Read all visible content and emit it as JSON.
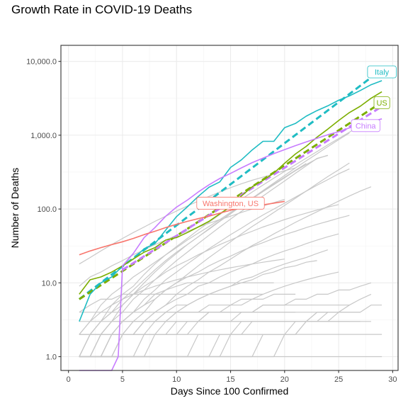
{
  "chart_data": {
    "type": "line",
    "title": "Growth Rate in COVID-19 Deaths",
    "xlabel": "Days Since 100 Confirmed",
    "ylabel": "Number of Deaths",
    "y_scale": "log10",
    "xlim": [
      -0.7,
      30.5
    ],
    "ylim": [
      0.65,
      16500
    ],
    "grid": true,
    "x_ticks": [
      0,
      5,
      10,
      15,
      20,
      25,
      30
    ],
    "x_tick_labels": [
      "0",
      "5",
      "10",
      "15",
      "20",
      "25",
      "30"
    ],
    "y_ticks": [
      1,
      10,
      100,
      1000,
      10000
    ],
    "y_tick_labels": [
      "1.0",
      "10.0",
      "100.0",
      "1,000.0",
      "10,000.0"
    ],
    "colors": {
      "Italy": "#1fbcc3",
      "US": "#7cae00",
      "China": "#c77cff",
      "Washington, US": "#f8766d",
      "background_lines": "#c8c8c8"
    },
    "series": [
      {
        "name": "Italy",
        "x": [
          1,
          2,
          3,
          4,
          5,
          6,
          7,
          8,
          9,
          10,
          11,
          12,
          13,
          14,
          15,
          16,
          17,
          18,
          19,
          20,
          21,
          22,
          23,
          24,
          25,
          26,
          27,
          28,
          29
        ],
        "y": [
          3,
          7,
          10,
          12,
          17,
          21,
          29,
          34,
          52,
          79,
          107,
          148,
          197,
          233,
          366,
          463,
          631,
          827,
          827,
          1266,
          1441,
          1809,
          2158,
          2503,
          2978,
          3405,
          4032,
          4825,
          5476
        ]
      },
      {
        "name": "US",
        "x": [
          1,
          2,
          3,
          4,
          5,
          6,
          7,
          8,
          9,
          10,
          11,
          12,
          13,
          14,
          15,
          16,
          17,
          18,
          19,
          20,
          21,
          22,
          23,
          24,
          25,
          26,
          27,
          28,
          29
        ],
        "y": [
          7,
          11,
          12,
          14,
          17,
          21,
          26,
          30,
          38,
          41,
          48,
          57,
          68,
          86,
          108,
          150,
          200,
          244,
          307,
          417,
          557,
          706,
          942,
          1209,
          1581,
          2026,
          2467,
          3170,
          3873
        ]
      },
      {
        "name": "China",
        "x": [
          1,
          2,
          3,
          4,
          4.6,
          5,
          6,
          7,
          8,
          9,
          10,
          11,
          12,
          13,
          14,
          15,
          16,
          17,
          18,
          19,
          20,
          21,
          22,
          23,
          24,
          25,
          26,
          27,
          28,
          29
        ],
        "y": [
          0.65,
          0.65,
          0.65,
          0.65,
          1,
          17,
          25,
          41,
          56,
          80,
          106,
          132,
          170,
          213,
          259,
          304,
          361,
          425,
          490,
          563,
          637,
          722,
          811,
          908,
          1016,
          1113,
          1259,
          1380,
          1523,
          1665
        ]
      },
      {
        "name": "Washington, US",
        "x": [
          1,
          2,
          3,
          4,
          5,
          6,
          7,
          8,
          9,
          10,
          11,
          12,
          13,
          14,
          15,
          16,
          17,
          18,
          19,
          20
        ],
        "y": [
          24,
          27,
          30,
          33,
          36,
          40,
          45,
          50,
          56,
          62,
          68,
          74,
          80,
          88,
          96,
          104,
          110,
          114,
          120,
          127
        ]
      },
      {
        "name": "Italy trend",
        "dashed": true,
        "color_of": "Italy",
        "x": [
          1,
          29
        ],
        "y": [
          6,
          7800
        ]
      },
      {
        "name": "US trend",
        "dashed": true,
        "color_of": "US",
        "x": [
          1,
          29
        ],
        "y": [
          6,
          2800
        ]
      },
      {
        "name": "China trend",
        "dashed": true,
        "color_of": "China",
        "x": [
          5,
          29
        ],
        "y": [
          15,
          2450
        ]
      }
    ],
    "labels": [
      {
        "text": "Italy",
        "series": "Italy",
        "x": 29,
        "y": 7200
      },
      {
        "text": "US",
        "series": "US",
        "x": 29,
        "y": 2750
      },
      {
        "text": "China",
        "series": "China",
        "x": 27.5,
        "y": 1350
      },
      {
        "text": "Washington, US",
        "series": "Washington, US",
        "x": 15,
        "y": 120
      }
    ],
    "background_series": [
      {
        "y": [
          1,
          1,
          1,
          1,
          1,
          1,
          1,
          1,
          1,
          1,
          1,
          1,
          1,
          1,
          1,
          1,
          1,
          1,
          1,
          1,
          1,
          1,
          1,
          1,
          1,
          1,
          1,
          1,
          1
        ]
      },
      {
        "y": [
          2,
          2,
          2,
          2,
          2,
          2,
          2,
          2,
          2,
          2,
          2,
          2,
          2,
          2,
          2,
          2,
          2,
          2,
          2,
          2,
          2,
          2,
          2,
          2,
          2,
          2,
          2,
          2,
          2
        ]
      },
      {
        "y": [
          4,
          4,
          4,
          4,
          4,
          4,
          4,
          4,
          4,
          4,
          4,
          4,
          4,
          4,
          4,
          4,
          4,
          4,
          4,
          4,
          4,
          4,
          4,
          4,
          4,
          4,
          4
        ]
      },
      {
        "y": [
          1,
          1,
          1,
          1,
          1,
          1,
          1,
          1,
          1,
          1,
          1,
          1,
          1,
          1,
          2,
          3,
          3,
          3,
          3,
          3,
          3,
          3,
          3,
          3,
          3,
          3,
          3,
          3
        ]
      },
      {
        "y": [
          1,
          2,
          3,
          5,
          7,
          9,
          13,
          18,
          24,
          31,
          40,
          52,
          66,
          84,
          108,
          136,
          170,
          211,
          262,
          323,
          398,
          490,
          600,
          740,
          900,
          1100,
          1340,
          1600
        ]
      },
      {
        "y": [
          1,
          2,
          3,
          4,
          6,
          8,
          11,
          15,
          20,
          26,
          33,
          42,
          53,
          68,
          86,
          110,
          140,
          178,
          225,
          285,
          360,
          450,
          560,
          700,
          870,
          1070
        ]
      },
      {
        "y": [
          2,
          3,
          5,
          7,
          9,
          12,
          15,
          19,
          24,
          30,
          38,
          47,
          58,
          72,
          90,
          112,
          140,
          175,
          218,
          270,
          335,
          415
        ]
      },
      {
        "y": [
          1,
          1,
          2,
          3,
          4,
          6,
          8,
          11,
          15,
          20,
          26,
          34,
          44,
          57,
          73,
          93,
          118,
          150,
          190,
          240,
          305,
          385,
          485,
          530
        ]
      },
      {
        "y": [
          1,
          2,
          2,
          3,
          5,
          7,
          10,
          14,
          19,
          25,
          33,
          42,
          54,
          69,
          87,
          110,
          138,
          172,
          214,
          265,
          330,
          400,
          480,
          535
        ]
      },
      {
        "y": [
          1,
          1,
          1,
          2,
          2,
          3,
          4,
          6,
          8,
          10,
          13,
          17,
          22,
          28,
          36,
          46,
          58,
          72,
          90,
          112,
          140,
          175,
          220,
          275,
          340,
          420
        ]
      },
      {
        "y": [
          1,
          1,
          2,
          3,
          3,
          4,
          6,
          8,
          11,
          14,
          18,
          23,
          29,
          36,
          45,
          55,
          68,
          83,
          100,
          120,
          145,
          175,
          210,
          250,
          300,
          350
        ]
      },
      {
        "y": [
          1,
          1,
          1,
          1,
          2,
          2,
          3,
          4,
          5,
          7,
          9,
          11,
          14,
          17,
          21,
          26,
          32,
          38,
          46,
          55,
          66,
          78,
          92,
          108,
          128,
          150,
          175,
          200
        ]
      },
      {
        "y": [
          2,
          2,
          3,
          4,
          5,
          7,
          9,
          11,
          14,
          17,
          20,
          24,
          28,
          33,
          38,
          44,
          50,
          57,
          64,
          72,
          80,
          88,
          97,
          106,
          115
        ]
      },
      {
        "y": [
          1,
          1,
          2,
          2,
          3,
          4,
          5,
          6,
          8,
          10,
          12,
          14,
          17,
          20,
          23,
          27,
          31,
          35,
          40,
          45,
          50,
          56,
          62,
          68,
          75,
          82
        ]
      },
      {
        "y": [
          1,
          1,
          1,
          2,
          2,
          3,
          3,
          4,
          5,
          6,
          7,
          9,
          10,
          12,
          14,
          16,
          18,
          21,
          24,
          27,
          30,
          34,
          38,
          42,
          46
        ]
      },
      {
        "y": [
          1,
          1,
          1,
          1,
          2,
          2,
          2,
          3,
          3,
          4,
          5,
          6,
          7,
          8,
          9,
          11,
          12,
          14,
          16,
          18,
          20,
          22,
          25,
          28
        ]
      },
      {
        "y": [
          1,
          1,
          1,
          1,
          1,
          1,
          2,
          2,
          2,
          3,
          3,
          3,
          4,
          4,
          5,
          5,
          6,
          7,
          8,
          9,
          10,
          11,
          12,
          13,
          14
        ]
      },
      {
        "y": [
          1,
          1,
          1,
          1,
          1,
          1,
          1,
          2,
          2,
          2,
          2,
          3,
          3,
          3,
          3,
          4,
          4,
          5,
          5,
          5,
          6,
          6,
          7,
          7,
          8,
          8,
          9,
          10
        ]
      },
      {
        "y": [
          1,
          1,
          1,
          1,
          1,
          1,
          1,
          1,
          1,
          1,
          1,
          2,
          2,
          2,
          2,
          2,
          2,
          2,
          2,
          2,
          3,
          3,
          3,
          3,
          3,
          3,
          3
        ]
      },
      {
        "y": [
          1,
          1,
          1,
          1,
          2,
          2,
          2,
          2,
          3,
          3,
          3,
          3,
          4,
          4,
          4,
          4,
          4,
          5,
          5,
          5,
          5,
          5,
          5,
          5,
          5,
          5
        ]
      },
      {
        "y": [
          2,
          2,
          2,
          2,
          3,
          3,
          3,
          3,
          3,
          3,
          3,
          3,
          3,
          3,
          3,
          3,
          3,
          3,
          3,
          3,
          3,
          3,
          3,
          3,
          3,
          3
        ]
      },
      {
        "y": [
          3,
          3,
          3,
          3,
          3,
          3,
          3,
          3,
          4,
          4,
          4,
          4,
          4,
          4,
          4,
          4,
          4,
          4,
          4,
          4,
          4
        ]
      },
      {
        "y": [
          1,
          2,
          2,
          2,
          2,
          2,
          3,
          3,
          3,
          4,
          4,
          4,
          5,
          5,
          5,
          6,
          6,
          6,
          7,
          7,
          7
        ]
      },
      {
        "y": [
          1,
          1,
          1,
          2,
          2,
          2,
          3,
          3,
          4,
          5,
          5,
          6,
          7,
          8,
          9,
          10,
          11,
          13,
          14,
          16,
          17,
          19,
          20
        ]
      },
      {
        "y": [
          2,
          3,
          4,
          5,
          6,
          7,
          8,
          9,
          10,
          11,
          12,
          13,
          14,
          15,
          16,
          17,
          18,
          19,
          20,
          21
        ]
      },
      {
        "y": [
          1,
          1,
          1,
          2,
          3,
          4,
          5,
          7,
          8,
          9,
          10,
          10,
          10,
          10,
          10,
          10,
          10,
          10,
          10
        ]
      },
      {
        "y": [
          4,
          5,
          6,
          6,
          7,
          7,
          7,
          7,
          7,
          7,
          7,
          7,
          7,
          7,
          7,
          7,
          7,
          7
        ]
      },
      {
        "y": [
          9,
          12,
          14,
          17,
          20,
          24,
          28,
          33,
          38,
          44,
          50,
          57,
          64,
          72,
          80,
          90,
          100,
          110,
          122,
          135
        ]
      },
      {
        "y": [
          18,
          22,
          27,
          33,
          40,
          48,
          57,
          68,
          80,
          94,
          110,
          128,
          148,
          170,
          195,
          220,
          245,
          270,
          300,
          330,
          360
        ]
      },
      {
        "y": [
          1,
          1,
          1,
          1,
          1,
          1,
          1,
          1,
          1,
          1,
          1,
          1,
          1,
          1,
          1,
          1,
          1,
          1,
          1,
          2,
          2,
          3,
          3,
          3,
          4,
          4,
          4,
          5,
          5
        ]
      },
      {
        "y": [
          1,
          1,
          1,
          1,
          1,
          1,
          1,
          1,
          1,
          1,
          1,
          1,
          1,
          1,
          1,
          1,
          1,
          2,
          2,
          2,
          2,
          3,
          3,
          4,
          4,
          5,
          6,
          7
        ]
      },
      {
        "y": [
          1,
          1,
          1,
          1,
          1,
          1,
          1,
          1,
          1,
          1,
          1,
          1,
          1,
          2,
          2,
          2,
          3,
          3,
          3,
          3,
          3,
          3,
          4,
          4,
          4
        ]
      },
      {
        "y": [
          2,
          2,
          2,
          2,
          2,
          2,
          2,
          2,
          2,
          2,
          3,
          3,
          3,
          3,
          3,
          3,
          3,
          3,
          3,
          3,
          3,
          3,
          4,
          4
        ]
      }
    ]
  }
}
